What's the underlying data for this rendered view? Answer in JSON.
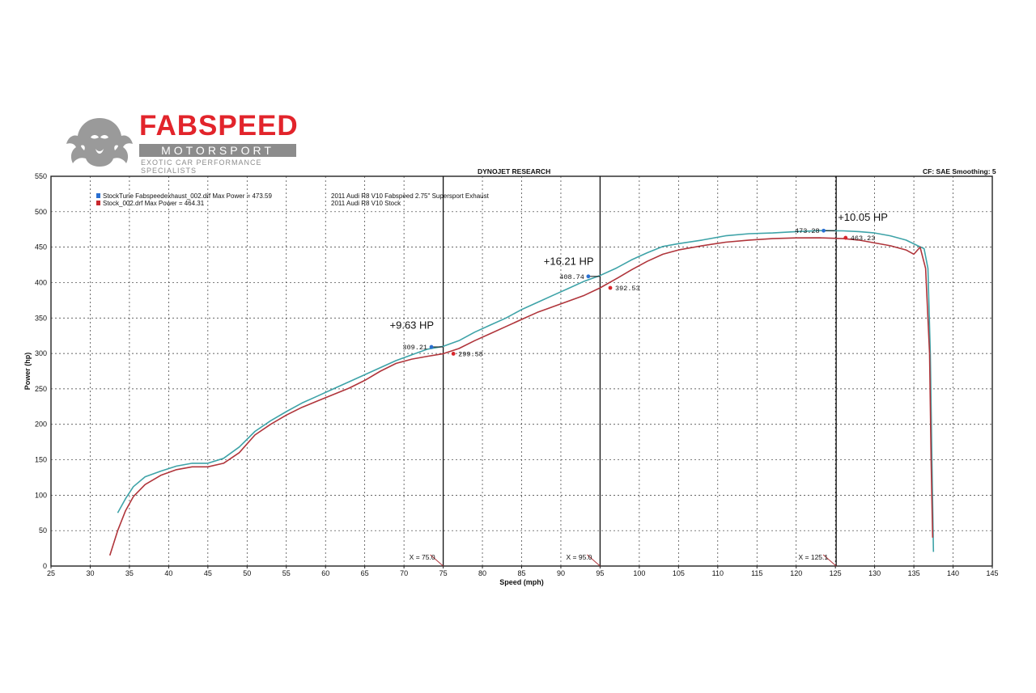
{
  "brand": {
    "name": "FABSPEED",
    "subname": "MOTORSPORT",
    "tagline": "EXOTIC CAR PERFORMANCE SPECIALISTS"
  },
  "header": {
    "center_title": "DYNOJET RESEARCH",
    "right_info": "CF: SAE  Smoothing: 5"
  },
  "legend": [
    {
      "label": "StockTune Fabspeedexhaust_002.drf Max Power = 473.59",
      "description": "2011 Audi R8 V10 Fabspeed 2.75\" Supersport Exhaust",
      "color": "#2a6fd1"
    },
    {
      "label": "Stock_002.drf Max Power = 464.31",
      "description": "2011 Audi R8 V10 Stock",
      "color": "#c8282d"
    }
  ],
  "chart_data": {
    "type": "line",
    "xlabel": "Speed (mph)",
    "ylabel": "Power (hp)",
    "xlim": [
      25,
      145
    ],
    "ylim": [
      0,
      550
    ],
    "x_ticks": [
      25,
      30,
      35,
      40,
      45,
      50,
      55,
      60,
      65,
      70,
      75,
      80,
      85,
      90,
      95,
      100,
      105,
      110,
      115,
      120,
      125,
      130,
      135,
      140,
      145
    ],
    "y_ticks": [
      0,
      50,
      100,
      150,
      200,
      250,
      300,
      350,
      400,
      450,
      500,
      550
    ],
    "grid": true,
    "series": [
      {
        "name": "StockTune Fabspeedexhaust_002.drf",
        "color": "#3ea3a8",
        "x": [
          33.5,
          34.5,
          35.5,
          37,
          39,
          41,
          43,
          45,
          47,
          49,
          51,
          53,
          55,
          57,
          59,
          61,
          63,
          65,
          67,
          69,
          71,
          73,
          75,
          77,
          79,
          81,
          83,
          85,
          87,
          89,
          91,
          93,
          95,
          97,
          99,
          101,
          103,
          105,
          108,
          111,
          114,
          117,
          120,
          123,
          126,
          128,
          130,
          132,
          134,
          135.5,
          136.3,
          136.8,
          137.1,
          137.3,
          137.5
        ],
        "y": [
          75,
          95,
          112,
          126,
          134,
          141,
          145,
          145,
          152,
          168,
          190,
          205,
          218,
          230,
          240,
          250,
          260,
          270,
          280,
          290,
          298,
          306,
          310,
          318,
          330,
          340,
          350,
          362,
          372,
          382,
          392,
          402,
          410,
          420,
          432,
          442,
          451,
          455,
          460,
          466,
          469,
          470,
          472,
          473.3,
          473,
          472,
          470,
          466,
          460,
          452,
          448,
          420,
          300,
          150,
          20
        ]
      },
      {
        "name": "Stock_002.drf",
        "color": "#b0353b",
        "x": [
          32.5,
          33.5,
          34.5,
          35.5,
          37,
          39,
          41,
          43,
          45,
          47,
          49,
          51,
          53,
          55,
          57,
          59,
          61,
          63,
          65,
          67,
          69,
          71,
          73,
          75,
          77,
          79,
          81,
          83,
          85,
          87,
          89,
          91,
          93,
          95,
          97,
          99,
          101,
          103,
          105,
          108,
          111,
          114,
          117,
          120,
          123,
          126,
          128,
          130,
          132,
          134,
          135,
          135.8,
          136.5,
          137,
          137.2,
          137.4
        ],
        "y": [
          15,
          50,
          78,
          98,
          115,
          128,
          136,
          140,
          140,
          145,
          160,
          185,
          200,
          213,
          224,
          233,
          242,
          251,
          262,
          275,
          286,
          292,
          296,
          299.6,
          307,
          318,
          328,
          338,
          348,
          358,
          366,
          374,
          382,
          392.5,
          405,
          418,
          430,
          440,
          446,
          452,
          457,
          460,
          462,
          463,
          463.2,
          462,
          460,
          456,
          452,
          446,
          440,
          450,
          420,
          300,
          150,
          40
        ]
      }
    ],
    "markers": [
      {
        "x": 75,
        "label": "X = 75.0"
      },
      {
        "x": 95,
        "label": "X = 95.0"
      },
      {
        "x": 125.1,
        "label": "X = 125.1"
      }
    ],
    "point_labels": [
      {
        "x": 73.5,
        "y": 309.21,
        "text": "309.21",
        "series": 0
      },
      {
        "x": 76.3,
        "y": 299.58,
        "text": "299.58",
        "series": 1
      },
      {
        "x": 93.5,
        "y": 408.74,
        "text": "408.74",
        "series": 0
      },
      {
        "x": 96.3,
        "y": 392.53,
        "text": "392.53",
        "series": 1
      },
      {
        "x": 123.5,
        "y": 473.28,
        "text": "473.28",
        "series": 0
      },
      {
        "x": 126.3,
        "y": 463.23,
        "text": "463.23",
        "series": 1
      }
    ],
    "annotations": [
      {
        "x": 71,
        "y": 335,
        "text": "+9.63 HP"
      },
      {
        "x": 91,
        "y": 425,
        "text": "+16.21 HP"
      },
      {
        "x": 128.5,
        "y": 487,
        "text": "+10.05 HP"
      }
    ],
    "point_colors": {
      "0": "#2a6fd1",
      "1": "#d7262b"
    }
  }
}
